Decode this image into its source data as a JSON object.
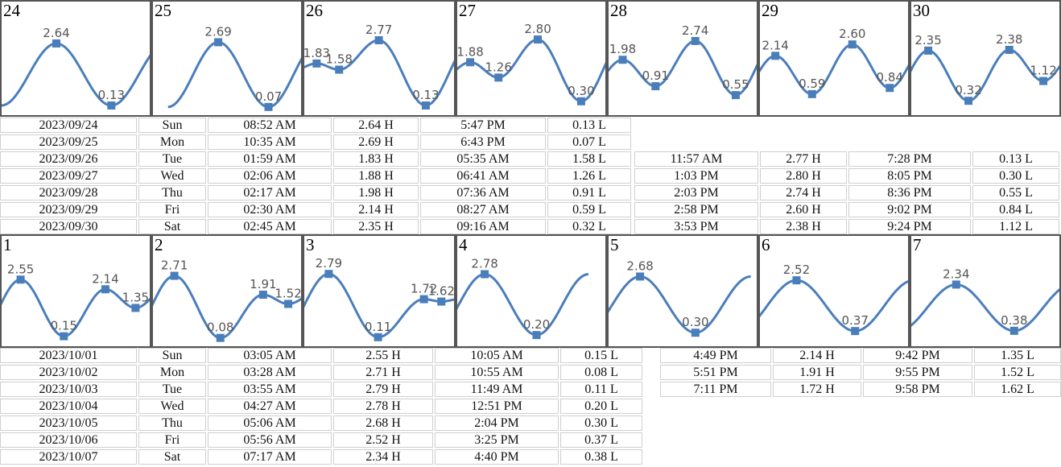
{
  "theme": {
    "line": "#4a7ebb",
    "marker": "#4a7ebb"
  },
  "chart_data": [
    {
      "type": "line",
      "day": "24",
      "events": [
        {
          "t": 8.87,
          "h": 2.64,
          "label": "2.64"
        },
        {
          "t": 17.78,
          "h": 0.13,
          "label": "0.13"
        }
      ]
    },
    {
      "type": "line",
      "day": "25",
      "events": [
        {
          "t": 10.58,
          "h": 2.69,
          "label": "2.69"
        },
        {
          "t": 18.72,
          "h": 0.07,
          "label": "0.07"
        }
      ]
    },
    {
      "type": "line",
      "day": "26",
      "events": [
        {
          "t": 1.98,
          "h": 1.83,
          "label": "1.83"
        },
        {
          "t": 5.58,
          "h": 1.58,
          "label": "1.58"
        },
        {
          "t": 11.95,
          "h": 2.77,
          "label": "2.77"
        },
        {
          "t": 19.47,
          "h": 0.13,
          "label": "0.13"
        }
      ]
    },
    {
      "type": "line",
      "day": "27",
      "events": [
        {
          "t": 2.1,
          "h": 1.88,
          "label": "1.88"
        },
        {
          "t": 6.68,
          "h": 1.26,
          "label": "1.26"
        },
        {
          "t": 13.05,
          "h": 2.8,
          "label": "2.80"
        },
        {
          "t": 20.08,
          "h": 0.3,
          "label": "0.30"
        }
      ]
    },
    {
      "type": "line",
      "day": "28",
      "events": [
        {
          "t": 2.28,
          "h": 1.98,
          "label": "1.98"
        },
        {
          "t": 7.6,
          "h": 0.91,
          "label": "0.91"
        },
        {
          "t": 14.05,
          "h": 2.74,
          "label": "2.74"
        },
        {
          "t": 20.6,
          "h": 0.55,
          "label": "0.55"
        }
      ]
    },
    {
      "type": "line",
      "day": "29",
      "events": [
        {
          "t": 2.5,
          "h": 2.14,
          "label": "2.14"
        },
        {
          "t": 8.45,
          "h": 0.59,
          "label": "0.59"
        },
        {
          "t": 14.97,
          "h": 2.6,
          "label": "2.60"
        },
        {
          "t": 21.03,
          "h": 0.84,
          "label": "0.84"
        }
      ]
    },
    {
      "type": "line",
      "day": "30",
      "events": [
        {
          "t": 2.75,
          "h": 2.35,
          "label": "2.35"
        },
        {
          "t": 9.27,
          "h": 0.32,
          "label": "0.32"
        },
        {
          "t": 15.88,
          "h": 2.38,
          "label": "2.38"
        },
        {
          "t": 21.4,
          "h": 1.12,
          "label": "1.12"
        }
      ]
    },
    {
      "type": "line",
      "day": "1",
      "events": [
        {
          "t": 3.08,
          "h": 2.55,
          "label": "2.55"
        },
        {
          "t": 10.08,
          "h": 0.15,
          "label": "0.15"
        },
        {
          "t": 16.82,
          "h": 2.14,
          "label": "2.14"
        },
        {
          "t": 21.7,
          "h": 1.35,
          "label": "1.35"
        }
      ]
    },
    {
      "type": "line",
      "day": "2",
      "events": [
        {
          "t": 3.47,
          "h": 2.71,
          "label": "2.71"
        },
        {
          "t": 10.92,
          "h": 0.08,
          "label": "0.08"
        },
        {
          "t": 17.85,
          "h": 1.91,
          "label": "1.91"
        },
        {
          "t": 21.92,
          "h": 1.52,
          "label": "1.52"
        }
      ]
    },
    {
      "type": "line",
      "day": "3",
      "events": [
        {
          "t": 3.92,
          "h": 2.79,
          "label": "2.79"
        },
        {
          "t": 11.82,
          "h": 0.11,
          "label": "0.11"
        },
        {
          "t": 19.18,
          "h": 1.72,
          "label": "1.72"
        },
        {
          "t": 21.97,
          "h": 1.62,
          "label": "1.62"
        }
      ]
    },
    {
      "type": "line",
      "day": "4",
      "events": [
        {
          "t": 4.45,
          "h": 2.78,
          "label": "2.78"
        },
        {
          "t": 12.85,
          "h": 0.2,
          "label": "0.20"
        }
      ]
    },
    {
      "type": "line",
      "day": "5",
      "events": [
        {
          "t": 5.1,
          "h": 2.68,
          "label": "2.68"
        },
        {
          "t": 14.07,
          "h": 0.3,
          "label": "0.30"
        }
      ]
    },
    {
      "type": "line",
      "day": "6",
      "events": [
        {
          "t": 5.93,
          "h": 2.52,
          "label": "2.52"
        },
        {
          "t": 15.42,
          "h": 0.37,
          "label": "0.37"
        }
      ]
    },
    {
      "type": "line",
      "day": "7",
      "events": [
        {
          "t": 7.28,
          "h": 2.34,
          "label": "2.34"
        },
        {
          "t": 16.67,
          "h": 0.38,
          "label": "0.38"
        }
      ]
    }
  ],
  "table1": [
    [
      "2023/09/24",
      "Sun",
      "08:52 AM",
      "2.64 H",
      "5:47 PM",
      "0.13 L"
    ],
    [
      "2023/09/25",
      "Mon",
      "10:35 AM",
      "2.69 H",
      "6:43 PM",
      "0.07 L"
    ],
    [
      "2023/09/26",
      "Tue",
      "01:59 AM",
      "1.83 H",
      "05:35 AM",
      "1.58 L",
      "11:57 AM",
      "2.77 H",
      "7:28 PM",
      "0.13 L"
    ],
    [
      "2023/09/27",
      "Wed",
      "02:06 AM",
      "1.88 H",
      "06:41 AM",
      "1.26 L",
      "1:03 PM",
      "2.80 H",
      "8:05 PM",
      "0.30 L"
    ],
    [
      "2023/09/28",
      "Thu",
      "02:17 AM",
      "1.98 H",
      "07:36 AM",
      "0.91 L",
      "2:03 PM",
      "2.74 H",
      "8:36 PM",
      "0.55 L"
    ],
    [
      "2023/09/29",
      "Fri",
      "02:30 AM",
      "2.14 H",
      "08:27 AM",
      "0.59 L",
      "2:58 PM",
      "2.60 H",
      "9:02 PM",
      "0.84 L"
    ],
    [
      "2023/09/30",
      "Sat",
      "02:45 AM",
      "2.35 H",
      "09:16 AM",
      "0.32 L",
      "3:53 PM",
      "2.38 H",
      "9:24 PM",
      "1.12 L"
    ]
  ],
  "table2": [
    [
      "2023/10/01",
      "Sun",
      "03:05 AM",
      "2.55 H",
      "10:05 AM",
      "0.15 L",
      "4:49 PM",
      "2.14 H",
      "9:42 PM",
      "1.35 L"
    ],
    [
      "2023/10/02",
      "Mon",
      "03:28 AM",
      "2.71 H",
      "10:55 AM",
      "0.08 L",
      "5:51 PM",
      "1.91 H",
      "9:55 PM",
      "1.52 L"
    ],
    [
      "2023/10/03",
      "Tue",
      "03:55 AM",
      "2.79 H",
      "11:49 AM",
      "0.11 L",
      "7:11 PM",
      "1.72 H",
      "9:58 PM",
      "1.62 L"
    ],
    [
      "2023/10/04",
      "Wed",
      "04:27 AM",
      "2.78 H",
      "12:51 PM",
      "0.20 L"
    ],
    [
      "2023/10/05",
      "Thu",
      "05:06 AM",
      "2.68 H",
      "2:04 PM",
      "0.30 L"
    ],
    [
      "2023/10/06",
      "Fri",
      "05:56 AM",
      "2.52 H",
      "3:25 PM",
      "0.37 L"
    ],
    [
      "2023/10/07",
      "Sat",
      "07:17 AM",
      "2.34 H",
      "4:40 PM",
      "0.38 L"
    ]
  ]
}
